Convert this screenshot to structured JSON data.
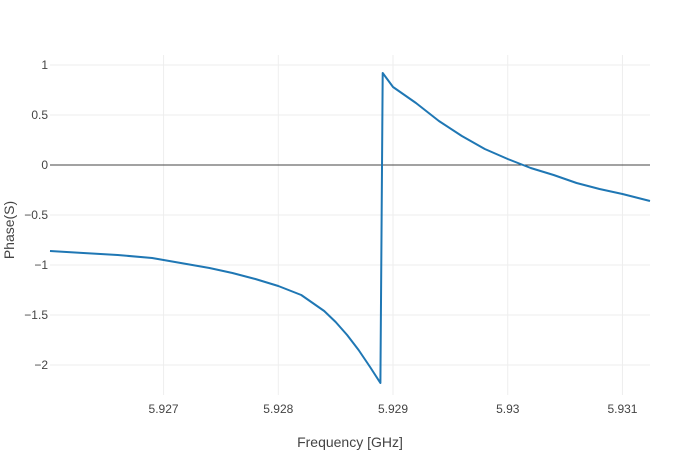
{
  "chart_data": {
    "type": "line",
    "xlabel": "Frequency [GHz]",
    "ylabel": "Phase(S)",
    "xlim": [
      5.92601,
      5.93124
    ],
    "ylim": [
      -2.3,
      1.1
    ],
    "grid": true,
    "x_ticks": [
      5.927,
      5.928,
      5.929,
      5.93,
      5.931
    ],
    "x_tick_labels": [
      "5.927",
      "5.928",
      "5.929",
      "5.93",
      "5.931"
    ],
    "y_ticks": [
      1,
      0.5,
      0,
      -0.5,
      -1,
      -1.5,
      -2
    ],
    "y_tick_labels": [
      "1",
      "0.5",
      "0",
      "−0.5",
      "−1",
      "−1.5",
      "−2"
    ],
    "zero_line": true,
    "colors": {
      "series": "#1f77b4",
      "grid": "#eeeeee",
      "zero_line": "#444444",
      "text": "#444444"
    },
    "series": [
      {
        "x": [
          5.92601,
          5.9263,
          5.9266,
          5.9269,
          5.927,
          5.9272,
          5.9274,
          5.9276,
          5.9278,
          5.928,
          5.9282,
          5.9283,
          5.9284,
          5.9285,
          5.9286,
          5.9287,
          5.9288,
          5.92889,
          5.92891,
          5.929,
          5.9292,
          5.9294,
          5.9296,
          5.9298,
          5.93,
          5.9302,
          5.9304,
          5.9306,
          5.9308,
          5.931,
          5.93124
        ],
        "y": [
          -0.86,
          -0.88,
          -0.9,
          -0.93,
          -0.95,
          -0.99,
          -1.03,
          -1.08,
          -1.14,
          -1.21,
          -1.3,
          -1.38,
          -1.46,
          -1.57,
          -1.7,
          -1.85,
          -2.02,
          -2.18,
          0.92,
          0.78,
          0.62,
          0.44,
          0.29,
          0.16,
          0.06,
          -0.03,
          -0.1,
          -0.18,
          -0.24,
          -0.29,
          -0.36
        ]
      }
    ]
  }
}
